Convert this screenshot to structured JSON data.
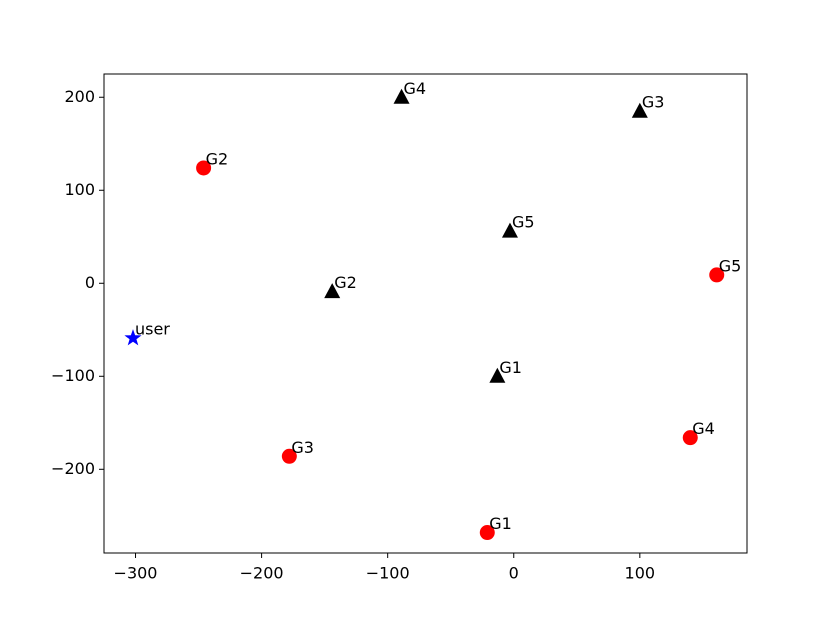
{
  "chart_data": {
    "type": "scatter",
    "xlim": [
      -325,
      185
    ],
    "ylim": [
      -290,
      225
    ],
    "xticks": [
      {
        "value": -300,
        "label": "−300"
      },
      {
        "value": -200,
        "label": "−200"
      },
      {
        "value": -100,
        "label": "−100"
      },
      0,
      100
    ],
    "yticks": [
      {
        "value": -200,
        "label": "−200"
      },
      {
        "value": -100,
        "label": "−100"
      },
      0,
      100,
      200
    ],
    "series": [
      {
        "color": "#ff0000",
        "marker": "circle",
        "x": [
          -21,
          -246,
          -178,
          140,
          161
        ],
        "y": [
          -268,
          124,
          -186,
          -166,
          9
        ],
        "labels": [
          "G1",
          "G2",
          "G3",
          "G4",
          "G5"
        ]
      },
      {
        "color": "#000000",
        "marker": "triangle",
        "x": [
          -13,
          -144,
          100,
          -89,
          -3
        ],
        "y": [
          -100,
          -9,
          185,
          200,
          56
        ],
        "labels": [
          "G1",
          "G2",
          "G3",
          "G4",
          "G5"
        ]
      },
      {
        "color": "#0000ff",
        "marker": "star",
        "x": [
          -302
        ],
        "y": [
          -59
        ],
        "labels": [
          "user"
        ]
      }
    ]
  }
}
